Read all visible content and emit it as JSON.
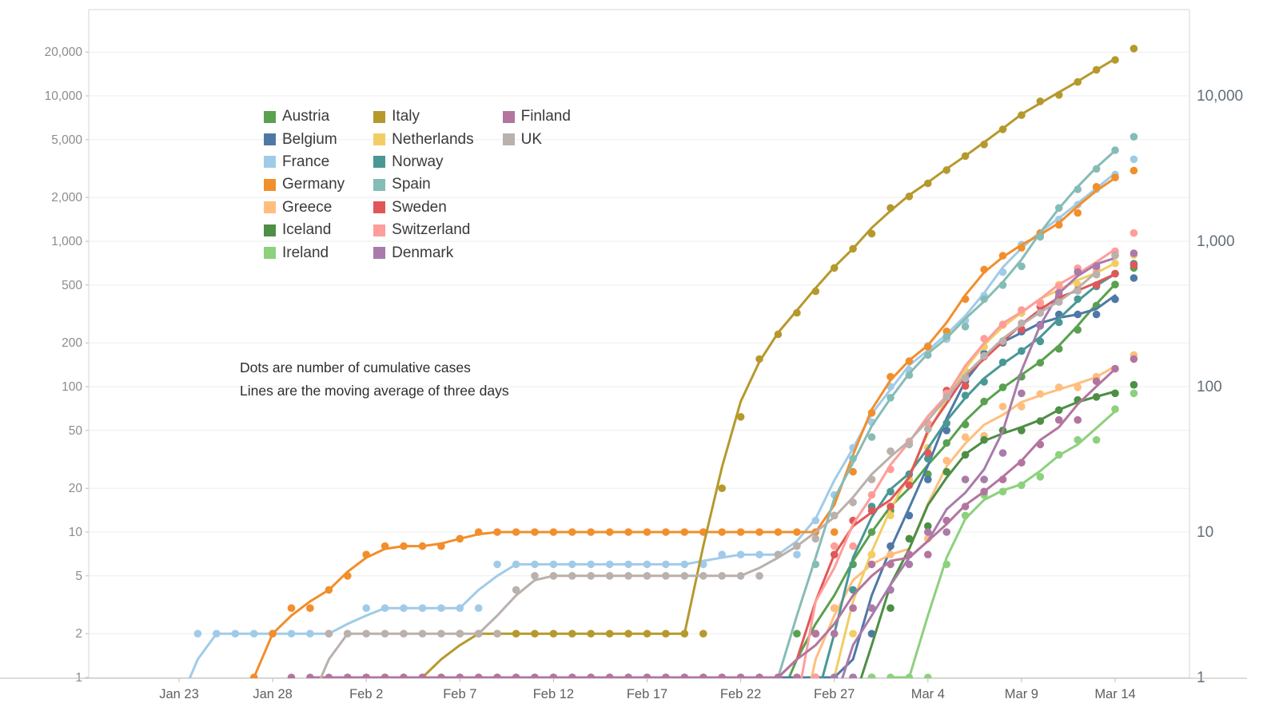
{
  "annotation": {
    "line1": "Dots are number of cumulative cases",
    "line2": "Lines are the moving average of three days"
  },
  "chart_data": {
    "type": "scatter",
    "title": "",
    "xlabel": "",
    "ylabel": "",
    "y_scale": "log",
    "grid": true,
    "legend_position": "upper-left-inside",
    "dot_meaning": "cumulative confirmed cases",
    "line_meaning": "3-day moving average",
    "dates": [
      "Jan 23",
      "Jan 24",
      "Jan 25",
      "Jan 26",
      "Jan 27",
      "Jan 28",
      "Jan 29",
      "Jan 30",
      "Jan 31",
      "Feb 1",
      "Feb 2",
      "Feb 3",
      "Feb 4",
      "Feb 5",
      "Feb 6",
      "Feb 7",
      "Feb 8",
      "Feb 9",
      "Feb 10",
      "Feb 11",
      "Feb 12",
      "Feb 13",
      "Feb 14",
      "Feb 15",
      "Feb 16",
      "Feb 17",
      "Feb 18",
      "Feb 19",
      "Feb 20",
      "Feb 21",
      "Feb 22",
      "Feb 23",
      "Feb 24",
      "Feb 25",
      "Feb 26",
      "Feb 27",
      "Feb 28",
      "Mar 1",
      "Mar 2",
      "Mar 3",
      "Mar 4",
      "Mar 5",
      "Mar 6",
      "Mar 7",
      "Mar 8",
      "Mar 9",
      "Mar 10",
      "Mar 11",
      "Mar 12",
      "Mar 13",
      "Mar 14",
      "Mar 15"
    ],
    "x_tick_day_index": [
      0,
      5,
      10,
      15,
      20,
      25,
      30,
      35,
      40,
      45,
      50
    ],
    "x_tick_labels": [
      "Jan 23",
      "Jan 28",
      "Feb 2",
      "Feb 7",
      "Feb 12",
      "Feb 17",
      "Feb 22",
      "Feb 27",
      "Mar 4",
      "Mar 9",
      "Mar 14"
    ],
    "y_ticks_left": [
      1,
      2,
      5,
      10,
      20,
      50,
      100,
      200,
      500,
      1000,
      2000,
      5000,
      10000,
      20000
    ],
    "y_ticks_right": [
      1,
      10,
      100,
      1000,
      10000
    ],
    "ylim": [
      1,
      40000
    ],
    "legend_columns": [
      [
        "Austria",
        "Belgium",
        "France",
        "Germany",
        "Greece",
        "Iceland",
        "Ireland"
      ],
      [
        "Italy",
        "Netherlands",
        "Norway",
        "Spain",
        "Sweden",
        "Switzerland",
        "Denmark"
      ],
      [
        "Finland",
        "UK"
      ]
    ],
    "series": [
      {
        "name": "Austria",
        "color": "#59a14f",
        "start": 33,
        "values": [
          2,
          2,
          3,
          6,
          10,
          14,
          21,
          25,
          41,
          55,
          79,
          99,
          117,
          146,
          182,
          246,
          361,
          504,
          655
        ]
      },
      {
        "name": "Belgium",
        "color": "#4e79a7",
        "start": 12,
        "values": [
          1,
          1,
          1,
          1,
          1,
          1,
          1,
          1,
          1,
          1,
          1,
          1,
          1,
          1,
          1,
          1,
          1,
          1,
          1,
          1,
          1,
          1,
          1,
          1,
          1,
          2,
          8,
          13,
          23,
          50,
          109,
          169,
          200,
          239,
          267,
          314,
          314,
          314,
          399,
          559
        ]
      },
      {
        "name": "France",
        "color": "#a0cbe8",
        "start": 1,
        "values": [
          2,
          2,
          2,
          2,
          2,
          2,
          2,
          2,
          2,
          3,
          3,
          3,
          3,
          3,
          3,
          3,
          6,
          6,
          6,
          6,
          6,
          6,
          6,
          6,
          6,
          6,
          6,
          6,
          7,
          7,
          7,
          7,
          7,
          12,
          18,
          38,
          57,
          100,
          130,
          191,
          212,
          285,
          423,
          613,
          949,
          1126,
          1412,
          1784,
          2281,
          2876,
          3661
        ]
      },
      {
        "name": "Germany",
        "color": "#f28e2b",
        "start": 4,
        "values": [
          1,
          2,
          3,
          3,
          4,
          5,
          7,
          8,
          8,
          8,
          8,
          9,
          10,
          10,
          10,
          10,
          10,
          10,
          10,
          10,
          10,
          10,
          10,
          10,
          10,
          10,
          10,
          10,
          10,
          10,
          10,
          10,
          26,
          66,
          117,
          150,
          188,
          240,
          400,
          639,
          795,
          902,
          1139,
          1296,
          1567,
          2369,
          2745,
          3062
        ]
      },
      {
        "name": "Greece",
        "color": "#ffbe7d",
        "start": 34,
        "values": [
          1,
          3,
          4,
          7,
          7,
          7,
          9,
          31,
          45,
          46,
          73,
          73,
          89,
          99,
          99,
          117,
          133,
          165
        ]
      },
      {
        "name": "Iceland",
        "color": "#4d8f44",
        "start": 36,
        "values": [
          1,
          1,
          3,
          9,
          11,
          26,
          34,
          43,
          50,
          50,
          58,
          69,
          81,
          85,
          90,
          103
        ]
      },
      {
        "name": "Ireland",
        "color": "#8cd17d",
        "start": 37,
        "values": [
          1,
          1,
          1,
          1,
          6,
          13,
          18,
          19,
          21,
          24,
          34,
          43,
          43,
          70,
          90
        ]
      },
      {
        "name": "Italy",
        "color": "#b6992d",
        "start": 10,
        "values": [
          1,
          1,
          1,
          1,
          1,
          2,
          2,
          2,
          2,
          2,
          2,
          2,
          2,
          2,
          2,
          2,
          2,
          2,
          2,
          20,
          62,
          155,
          229,
          322,
          453,
          655,
          888,
          1128,
          1694,
          2036,
          2502,
          3089,
          3858,
          4636,
          5883,
          7375,
          9172,
          10149,
          12462,
          15113,
          17660,
          21157
        ]
      },
      {
        "name": "Netherlands",
        "color": "#f1ce63",
        "start": 35,
        "values": [
          1,
          2,
          7,
          13,
          23,
          38,
          82,
          128,
          188,
          265,
          321,
          382,
          503,
          503,
          614,
          704,
          804
        ]
      },
      {
        "name": "Norway",
        "color": "#499894",
        "start": 34,
        "values": [
          1,
          1,
          4,
          15,
          19,
          25,
          32,
          56,
          87,
          108,
          147,
          176,
          205,
          277,
          400,
          489,
          598,
          702
        ]
      },
      {
        "name": "Spain",
        "color": "#86bcb6",
        "start": 9,
        "values": [
          1,
          1,
          1,
          1,
          1,
          1,
          1,
          1,
          1,
          1,
          1,
          1,
          1,
          1,
          1,
          1,
          1,
          1,
          1,
          1,
          1,
          1,
          1,
          1,
          1,
          6,
          13,
          32,
          45,
          84,
          120,
          165,
          222,
          259,
          400,
          500,
          673,
          1073,
          1695,
          2277,
          3146,
          4231,
          5232
        ]
      },
      {
        "name": "Sweden",
        "color": "#e15759",
        "start": 9,
        "values": [
          1,
          1,
          1,
          1,
          1,
          1,
          1,
          1,
          1,
          1,
          1,
          1,
          1,
          1,
          1,
          1,
          1,
          1,
          1,
          1,
          1,
          1,
          1,
          1,
          1,
          2,
          7,
          12,
          14,
          15,
          21,
          35,
          94,
          101,
          161,
          203,
          248,
          355,
          416,
          461,
          500,
          599,
          687
        ]
      },
      {
        "name": "Switzerland",
        "color": "#ff9d9a",
        "start": 33,
        "values": [
          1,
          1,
          8,
          8,
          18,
          27,
          42,
          56,
          90,
          114,
          214,
          268,
          337,
          374,
          491,
          652,
          652,
          854,
          1139
        ]
      },
      {
        "name": "Denmark",
        "color": "#a97bab",
        "start": 35,
        "values": [
          1,
          1,
          3,
          4,
          6,
          10,
          10,
          23,
          23,
          35,
          90,
          262,
          442,
          615,
          674,
          801,
          827
        ]
      },
      {
        "name": "Finland",
        "color": "#b3759f",
        "start": 6,
        "values": [
          1,
          1,
          1,
          1,
          1,
          1,
          1,
          1,
          1,
          1,
          1,
          1,
          1,
          1,
          1,
          1,
          1,
          1,
          1,
          1,
          1,
          1,
          1,
          1,
          1,
          1,
          1,
          1,
          2,
          2,
          3,
          6,
          6,
          7,
          7,
          12,
          15,
          19,
          23,
          30,
          40,
          59,
          59,
          109,
          133,
          155
        ]
      },
      {
        "name": "UK",
        "color": "#bab0ac",
        "start": 8,
        "values": [
          2,
          2,
          2,
          2,
          2,
          2,
          2,
          2,
          2,
          2,
          4,
          5,
          5,
          5,
          5,
          5,
          5,
          5,
          5,
          5,
          5,
          5,
          5,
          5,
          7,
          8,
          9,
          13,
          16,
          23,
          36,
          40,
          51,
          85,
          115,
          163,
          206,
          273,
          321,
          382,
          456,
          590,
          798
        ]
      }
    ],
    "style": {
      "grid_color": "#ededed",
      "border_color": "#d4d4d4",
      "axis_line_color": "#b9b9b9",
      "tick_color": "#bbbbbb",
      "left_label_color": "#8c8c8c",
      "right_label_color": "#636e78",
      "x_label_color": "#5f5f5f",
      "dot_radius": 4.8,
      "line_width": 3
    }
  }
}
